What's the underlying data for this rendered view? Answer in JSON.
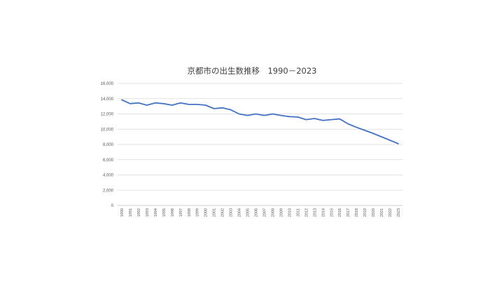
{
  "chart_data": {
    "type": "line",
    "title": "京都市の出生数推移　1990－2023",
    "xlabel": "",
    "ylabel": "",
    "ylim": [
      0,
      16000
    ],
    "yticks": [
      "0",
      "2,000",
      "4,000",
      "6,000",
      "8,000",
      "10,000",
      "12,000",
      "14,000",
      "16,000"
    ],
    "ytick_values": [
      0,
      2000,
      4000,
      6000,
      8000,
      10000,
      12000,
      14000,
      16000
    ],
    "grid": true,
    "legend": "none",
    "categories": [
      "1990",
      "1991",
      "1992",
      "1993",
      "1994",
      "1995",
      "1996",
      "1997",
      "1998",
      "1999",
      "2000",
      "2001",
      "2002",
      "2003",
      "2004",
      "2005",
      "2006",
      "2007",
      "2008",
      "2009",
      "2010",
      "2011",
      "2012",
      "2013",
      "2014",
      "2015",
      "2016",
      "2017",
      "2018",
      "2019",
      "2020",
      "2021",
      "2022",
      "2023"
    ],
    "series": [
      {
        "color": "#4472C4",
        "values": [
          13850,
          13350,
          13450,
          13150,
          13450,
          13350,
          13150,
          13450,
          13250,
          13250,
          13150,
          12700,
          12800,
          12550,
          12000,
          11800,
          12000,
          11800,
          12000,
          11800,
          11650,
          11600,
          11250,
          11400,
          11150,
          11250,
          11350,
          10700,
          10250,
          9850,
          9450,
          9000,
          8550,
          8100
        ]
      }
    ]
  }
}
